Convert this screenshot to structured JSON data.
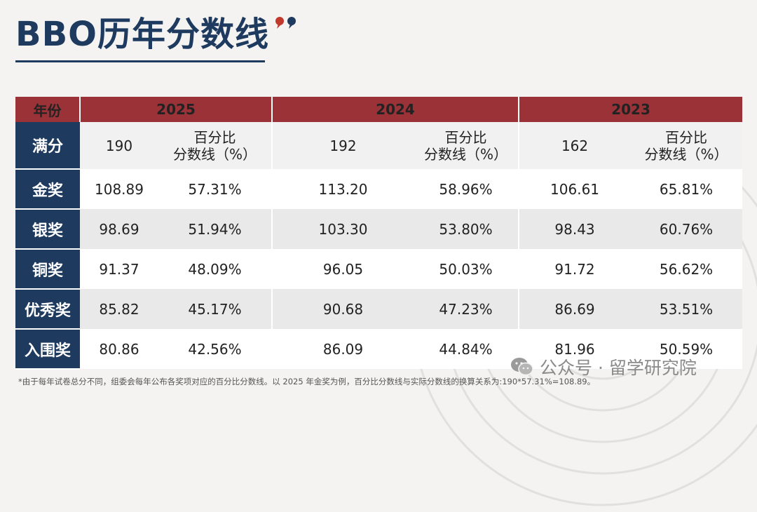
{
  "title": "BBO历年分数线",
  "table": {
    "header": {
      "year_label": "年份",
      "years": [
        "2025",
        "2024",
        "2023"
      ]
    },
    "full_score_row": {
      "label": "满分",
      "cells": [
        {
          "score": "190",
          "pct_label_line1": "百分比",
          "pct_label_line2": "分数线（%）"
        },
        {
          "score": "192",
          "pct_label_line1": "百分比",
          "pct_label_line2": "分数线（%）"
        },
        {
          "score": "162",
          "pct_label_line1": "百分比",
          "pct_label_line2": "分数线（%）"
        }
      ]
    },
    "rows": [
      {
        "label": "金奖",
        "values": [
          "108.89",
          "57.31%",
          "113.20",
          "58.96%",
          "106.61",
          "65.81%"
        ]
      },
      {
        "label": "银奖",
        "values": [
          "98.69",
          "51.94%",
          "103.30",
          "53.80%",
          "98.43",
          "60.76%"
        ]
      },
      {
        "label": "铜奖",
        "values": [
          "91.37",
          "48.09%",
          "96.05",
          "50.03%",
          "91.72",
          "56.62%"
        ]
      },
      {
        "label": "优秀奖",
        "values": [
          "85.82",
          "45.17%",
          "90.68",
          "47.23%",
          "86.69",
          "53.51%"
        ]
      },
      {
        "label": "入围奖",
        "values": [
          "80.86",
          "42.56%",
          "86.09",
          "44.84%",
          "81.96",
          "50.59%"
        ]
      }
    ]
  },
  "footnote": "*由于每年试卷总分不同，组委会每年公布各奖项对应的百分比分数线。以 2025 年金奖为例，百分比分数线与实际分数线的换算关系为:190*57.31%=108.89。",
  "watermark": "公众号 · 留学研究院",
  "colors": {
    "navy": "#1e3a5f",
    "red": "#9a3238"
  }
}
